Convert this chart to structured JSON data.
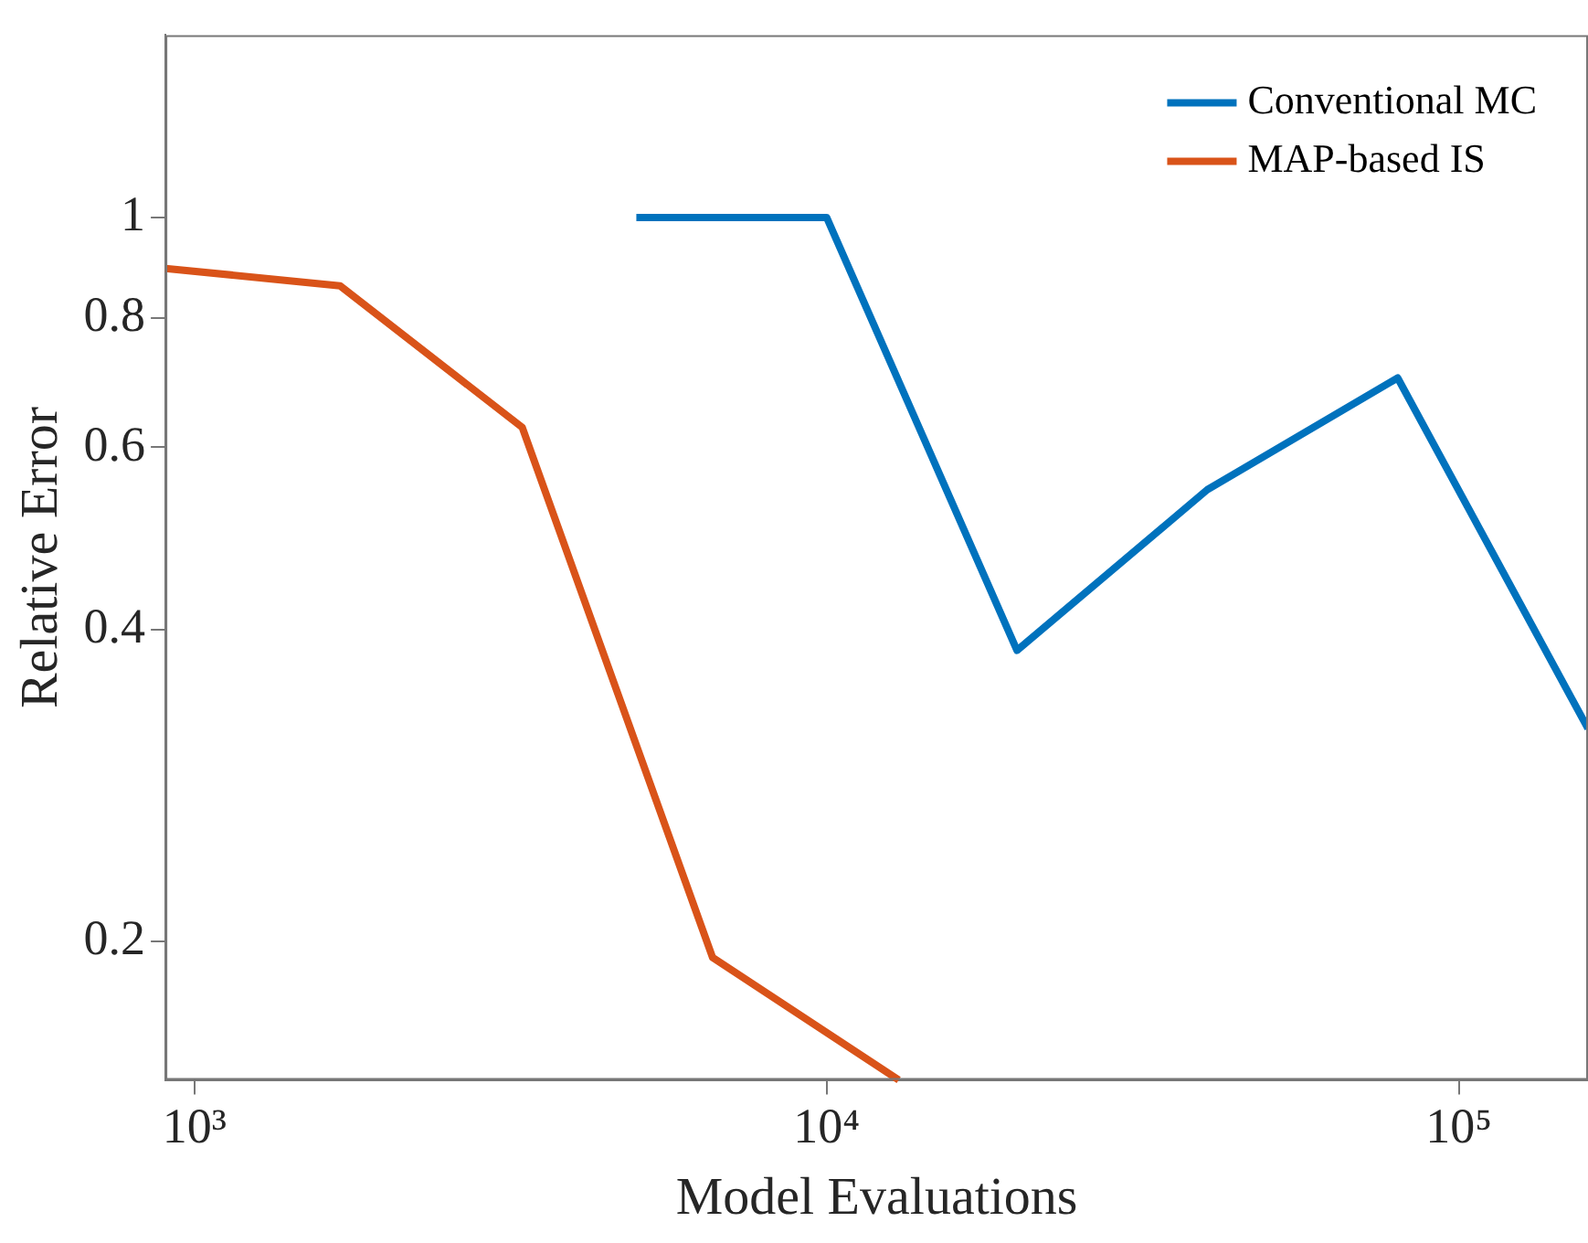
{
  "chart_data": {
    "type": "line",
    "xlabel": "Model Evaluations",
    "ylabel": "Relative Error",
    "log": "xy",
    "xlim": [
      900,
      160000
    ],
    "ylim": [
      0.147,
      1.5
    ],
    "xticks": [
      {
        "value": 1000,
        "label": "10³"
      },
      {
        "value": 10000,
        "label": "10⁴"
      },
      {
        "value": 100000,
        "label": "10⁵"
      }
    ],
    "yticks": [
      0.2,
      0.4,
      0.6,
      0.8,
      1
    ],
    "legend": "top right",
    "grid": false,
    "series": [
      {
        "name": "Conventional MC",
        "color": "#0072bd",
        "x": [
          5000,
          10000,
          20000,
          40000,
          80000,
          160000
        ],
        "values": [
          1,
          1,
          0.382,
          0.546,
          0.7,
          0.321
        ]
      },
      {
        "name": "MAP-based IS",
        "color": "#d95319",
        "x": [
          900,
          1700,
          3300,
          6600,
          13000
        ],
        "values": [
          0.893,
          0.859,
          0.627,
          0.193,
          0.147
        ]
      }
    ]
  }
}
